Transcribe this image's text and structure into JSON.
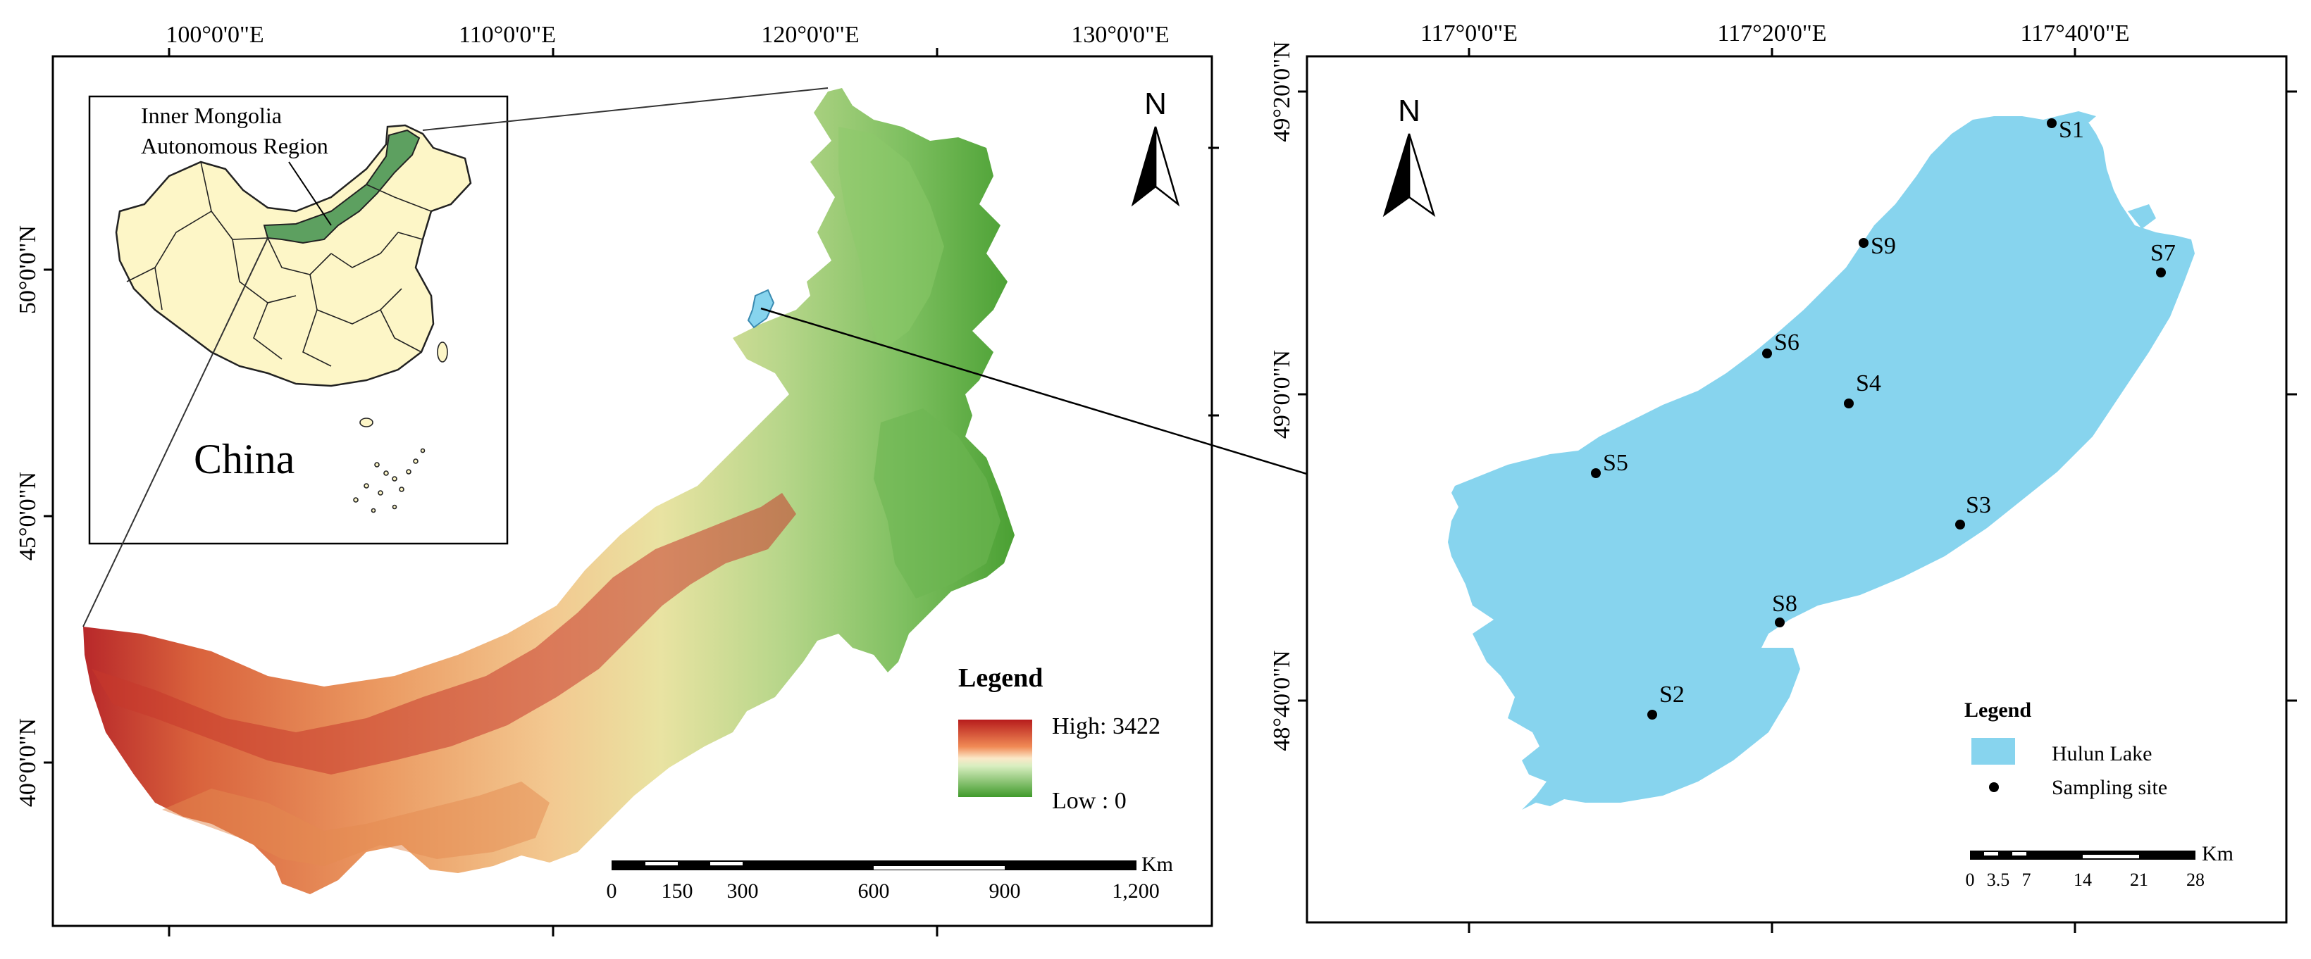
{
  "left_panel": {
    "top_ticks": [
      "100°0'0\"E",
      "110°0'0\"E",
      "120°0'0\"E",
      "130°0'0\"E"
    ],
    "left_ticks": [
      "50°0'0\"N",
      "45°0'0\"N",
      "40°0'0\"N"
    ],
    "inset": {
      "region_label_line1": "Inner Mongolia",
      "region_label_line2": "Autonomous Region",
      "country_label": "China"
    },
    "north_label": "N",
    "legend": {
      "title": "Legend",
      "high_label": "High: 3422",
      "low_label": "Low : 0",
      "high_color": "#b71c1c",
      "low_color": "#3f9a2a"
    },
    "scale_bar": {
      "unit": "Km",
      "labels": [
        "0",
        "150",
        "300",
        "600",
        "900",
        "1,200"
      ]
    }
  },
  "right_panel": {
    "top_ticks": [
      "117°0'0\"E",
      "117°20'0\"E",
      "117°40'0\"E"
    ],
    "left_ticks": [
      "49°20'0\"N",
      "49°0'0\"N",
      "48°40'0\"N"
    ],
    "north_label": "N",
    "sites": [
      {
        "name": "S1"
      },
      {
        "name": "S9"
      },
      {
        "name": "S7"
      },
      {
        "name": "S6"
      },
      {
        "name": "S4"
      },
      {
        "name": "S5"
      },
      {
        "name": "S3"
      },
      {
        "name": "S8"
      },
      {
        "name": "S2"
      }
    ],
    "legend": {
      "title": "Legend",
      "lake_label": "Hulun Lake",
      "site_label": "Sampling site",
      "lake_color": "#87d4ee"
    },
    "scale_bar": {
      "unit": "Km",
      "labels": [
        "0",
        "3.5",
        "7",
        "14",
        "21",
        "28"
      ]
    }
  }
}
